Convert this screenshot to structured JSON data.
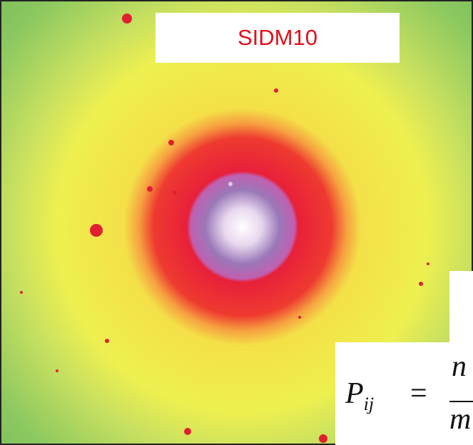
{
  "label": "SIDM10",
  "formula": {
    "lhs": "P",
    "subscript": "ij",
    "equals": "=",
    "numerator": "n",
    "denominator": "m"
  }
}
